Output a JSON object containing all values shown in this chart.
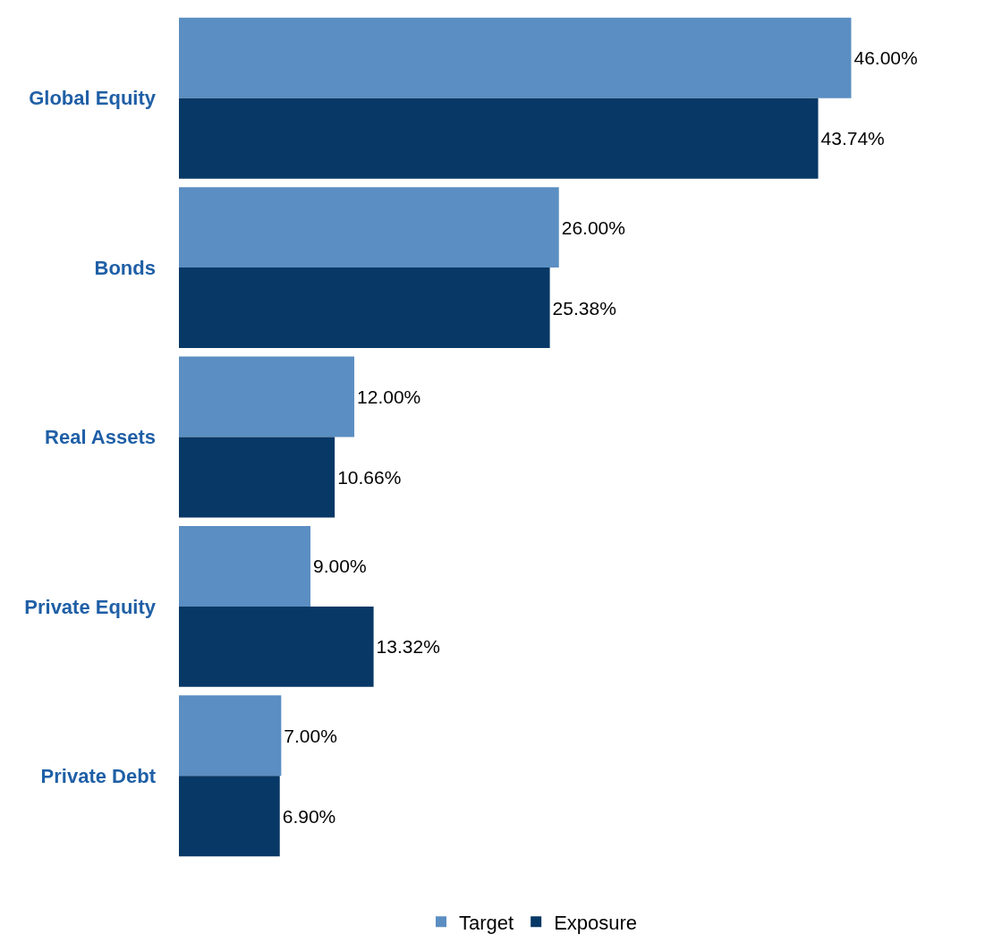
{
  "chart_data": {
    "type": "bar",
    "orientation": "horizontal",
    "categories": [
      "Global Equity",
      "Bonds",
      "Real Assets",
      "Private Equity",
      "Private Debt"
    ],
    "series": [
      {
        "name": "Target",
        "color": "#5b8ec2",
        "values": [
          46.0,
          26.0,
          12.0,
          9.0,
          7.0
        ],
        "value_labels": [
          "46.00%",
          "26.00%",
          "12.00%",
          "9.00%",
          "7.00%"
        ]
      },
      {
        "name": "Exposure",
        "color": "#083866",
        "values": [
          43.74,
          25.38,
          10.66,
          13.32,
          6.9
        ],
        "value_labels": [
          "43.74%",
          "25.38%",
          "10.66%",
          "13.32%",
          "6.90%"
        ]
      }
    ],
    "legend": "bottom",
    "tick_labels": "y"
  }
}
